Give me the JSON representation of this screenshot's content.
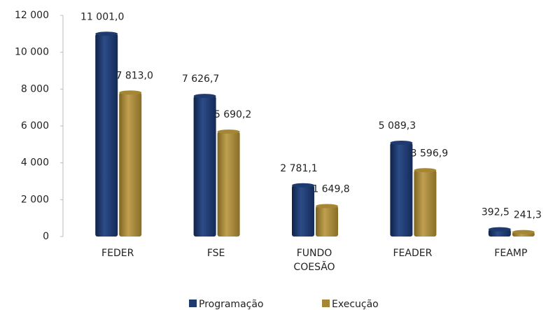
{
  "chart_data": {
    "type": "bar",
    "categories": [
      "FEDER",
      "FSE",
      "FUNDO COESÃO",
      "FEADER",
      "FEAMP"
    ],
    "series": [
      {
        "name": "Programação",
        "color": "#1f3a6e",
        "values": [
          11001.0,
          7626.7,
          2781.1,
          5089.3,
          392.5
        ],
        "value_labels": [
          "11 001,0",
          "7 626,7",
          "2 781,1",
          "5 089,3",
          "392,5"
        ]
      },
      {
        "name": "Execução",
        "color": "#a48634",
        "values": [
          7813.0,
          5690.2,
          1649.8,
          3596.9,
          241.3
        ],
        "value_labels": [
          "7 813,0",
          "5 690,2",
          "1 649,8",
          "3 596,9",
          "241,3"
        ]
      }
    ],
    "ylim": [
      0,
      12000
    ],
    "yticks": [
      0,
      {
        "value": 2000,
        "label": "2 000"
      },
      {
        "value": 4000,
        "label": "4 000"
      },
      {
        "value": 6000,
        "label": "6 000"
      },
      {
        "value": 8000,
        "label": "8 000"
      },
      {
        "value": 10000,
        "label": "10 000"
      },
      {
        "value": 12000,
        "label": "12 000"
      }
    ],
    "legend": "bottom"
  }
}
